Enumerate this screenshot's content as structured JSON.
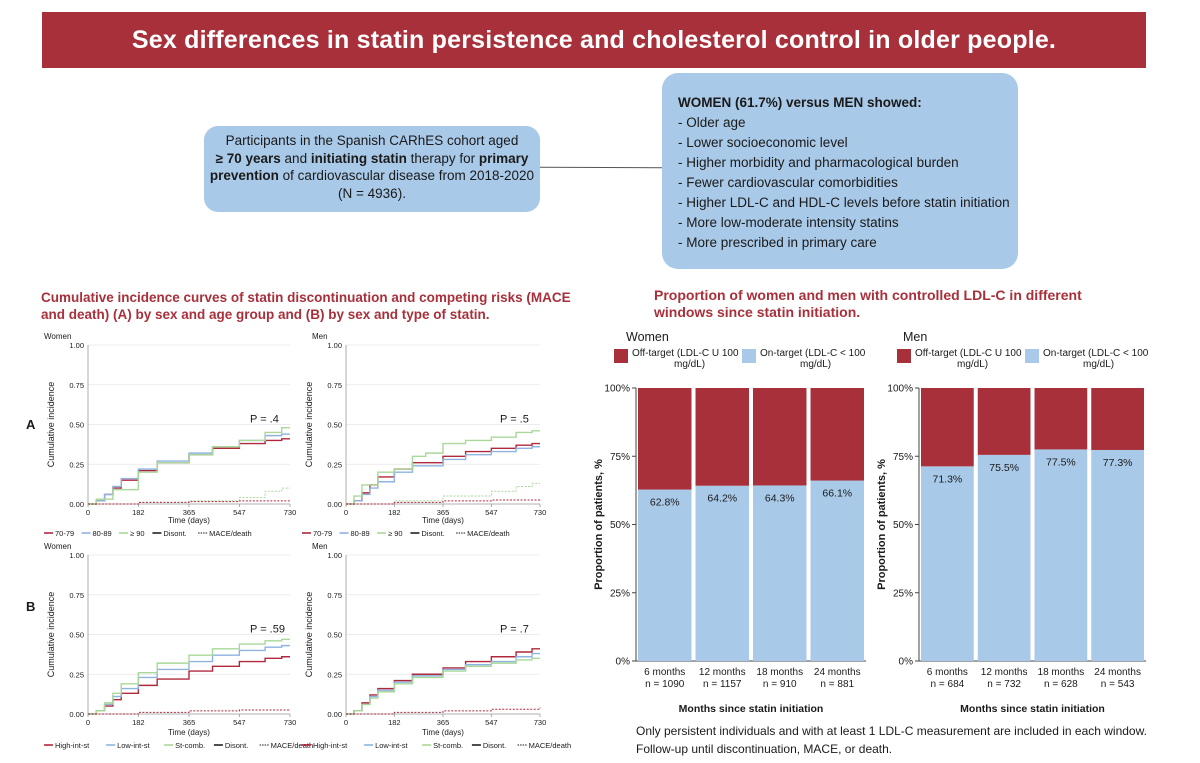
{
  "title": "Sex differences in statin persistence and cholesterol control in older people.",
  "participants": {
    "line1": "Participants in the Spanish CARhES cohort aged",
    "bold1": "≥ 70 years",
    "mid1": " and ",
    "bold2": "initiating statin",
    "mid2": " therapy for ",
    "bold3": "primary",
    "bold4": "prevention",
    "line3rest": " of cardiovascular disease from 2018-2020",
    "line4": "(N = 4936)."
  },
  "women_box": {
    "title": "WOMEN (61.7%) versus MEN showed:",
    "items": [
      "- Older age",
      "- Lower socioeconomic level",
      "- Higher morbidity and pharmacological burden",
      "- Fewer cardiovascular comorbidities",
      "- Higher LDL-C and HDL-C levels before statin initiation",
      "- More low-moderate intensity statins",
      "- More prescribed in primary care"
    ]
  },
  "left_title": "Cumulative incidence curves of statin discontinuation and competing risks (MACE and death) (A) by sex and age group and (B) by sex and type of statin.",
  "right_title": "Proportion of women and men with controlled LDL-C in different windows since statin initiation.",
  "footnote": {
    "line1": "Only persistent individuals and with at least 1 LDL-C measurement are included in each window.",
    "line2": "Follow-up until discontinuation, MACE, or death."
  },
  "colors": {
    "brand": "#a8303b",
    "box": "#a9c9e8",
    "red_curve": "#b0283c",
    "blue_curve": "#8fb3e0",
    "green_curve": "#a9d89a",
    "black_curve": "#222222",
    "off_target": "#a8303b",
    "on_target": "#a9c9e8"
  },
  "chart_data": [
    {
      "type": "line",
      "panel": "A",
      "title": "Women",
      "xlabel": "Time (days)",
      "ylabel": "Cumulative incidence",
      "xticks": [
        "0",
        "182",
        "365",
        "547",
        "730"
      ],
      "yticks": [
        "0.00",
        "0.25",
        "0.50",
        "0.75",
        "1.00"
      ],
      "xlim": [
        0,
        730
      ],
      "ylim": [
        0,
        1
      ],
      "pvalue": "P = .4",
      "legend": [
        "70-79",
        "80-89",
        "≥ 90",
        "Disont.",
        "MACE/death"
      ],
      "series": [
        {
          "name": "70-79",
          "color": "red",
          "x": [
            30,
            60,
            90,
            120,
            182,
            250,
            365,
            450,
            547,
            640,
            700
          ],
          "y": [
            0.02,
            0.06,
            0.1,
            0.15,
            0.21,
            0.26,
            0.31,
            0.35,
            0.38,
            0.4,
            0.41
          ]
        },
        {
          "name": "80-89",
          "color": "blue",
          "x": [
            30,
            60,
            90,
            120,
            182,
            250,
            365,
            450,
            547,
            640,
            700
          ],
          "y": [
            0.02,
            0.06,
            0.11,
            0.16,
            0.22,
            0.27,
            0.32,
            0.36,
            0.4,
            0.43,
            0.44
          ]
        },
        {
          "name": "≥ 90",
          "color": "green",
          "x": [
            30,
            90,
            182,
            250,
            365,
            450,
            547,
            640,
            700
          ],
          "y": [
            0.03,
            0.09,
            0.2,
            0.26,
            0.31,
            0.36,
            0.4,
            0.45,
            0.48
          ]
        },
        {
          "name": "≥ 90 MACE/death",
          "color": "green",
          "x": [
            0,
            182,
            365,
            547,
            640,
            700
          ],
          "y": [
            0.0,
            0.01,
            0.02,
            0.04,
            0.08,
            0.1
          ]
        },
        {
          "name": "MACE/death",
          "color": "red",
          "x": [
            0,
            182,
            365,
            547,
            730
          ],
          "y": [
            0.0,
            0.01,
            0.015,
            0.02,
            0.025
          ]
        }
      ]
    },
    {
      "type": "line",
      "panel": "A",
      "title": "Men",
      "xlabel": "Time (days)",
      "ylabel": "Cumulative incidence",
      "xticks": [
        "0",
        "182",
        "365",
        "547",
        "730"
      ],
      "yticks": [
        "0.00",
        "0.25",
        "0.50",
        "0.75",
        "1.00"
      ],
      "xlim": [
        0,
        730
      ],
      "ylim": [
        0,
        1
      ],
      "pvalue": "P = .5",
      "legend": [
        "70-79",
        "80-89",
        "≥ 90",
        "Disont.",
        "MACE/death"
      ],
      "series": [
        {
          "name": "70-79",
          "color": "red",
          "x": [
            30,
            60,
            90,
            120,
            182,
            250,
            365,
            450,
            547,
            640,
            700
          ],
          "y": [
            0.02,
            0.07,
            0.12,
            0.17,
            0.22,
            0.26,
            0.3,
            0.33,
            0.35,
            0.37,
            0.38
          ]
        },
        {
          "name": "80-89",
          "color": "blue",
          "x": [
            30,
            60,
            90,
            120,
            182,
            250,
            365,
            450,
            547,
            640,
            700
          ],
          "y": [
            0.02,
            0.06,
            0.1,
            0.14,
            0.2,
            0.24,
            0.28,
            0.31,
            0.33,
            0.35,
            0.36
          ]
        },
        {
          "name": "≥ 90",
          "color": "green",
          "x": [
            30,
            60,
            120,
            182,
            250,
            300,
            365,
            450,
            547,
            640,
            700
          ],
          "y": [
            0.05,
            0.12,
            0.2,
            0.22,
            0.3,
            0.32,
            0.38,
            0.4,
            0.42,
            0.45,
            0.46
          ]
        },
        {
          "name": "≥ 90 MACE/death",
          "color": "green",
          "x": [
            0,
            182,
            365,
            547,
            640,
            700
          ],
          "y": [
            0.0,
            0.02,
            0.05,
            0.08,
            0.11,
            0.13
          ]
        },
        {
          "name": "MACE/death",
          "color": "red",
          "x": [
            0,
            182,
            365,
            547,
            730
          ],
          "y": [
            0.0,
            0.01,
            0.02,
            0.025,
            0.03
          ]
        }
      ]
    },
    {
      "type": "line",
      "panel": "B",
      "title": "Women",
      "xlabel": "Time (days)",
      "ylabel": "Cumulative incidence",
      "xticks": [
        "0",
        "182",
        "365",
        "547",
        "730"
      ],
      "yticks": [
        "0.00",
        "0.25",
        "0.50",
        "0.75",
        "1.00"
      ],
      "xlim": [
        0,
        730
      ],
      "ylim": [
        0,
        1
      ],
      "pvalue": "P = .59",
      "legend": [
        "High-int-st",
        "Low-int-st",
        "St-comb.",
        "Disont.",
        "MACE/death"
      ],
      "series": [
        {
          "name": "High-int-st",
          "color": "red",
          "x": [
            30,
            60,
            90,
            120,
            182,
            250,
            365,
            450,
            547,
            640,
            700
          ],
          "y": [
            0.02,
            0.05,
            0.09,
            0.13,
            0.18,
            0.22,
            0.27,
            0.3,
            0.33,
            0.35,
            0.36
          ]
        },
        {
          "name": "Low-int-st",
          "color": "blue",
          "x": [
            30,
            60,
            90,
            120,
            182,
            250,
            365,
            450,
            547,
            640,
            700
          ],
          "y": [
            0.02,
            0.06,
            0.11,
            0.16,
            0.23,
            0.28,
            0.33,
            0.37,
            0.4,
            0.42,
            0.43
          ]
        },
        {
          "name": "St-comb.",
          "color": "green",
          "x": [
            30,
            60,
            90,
            120,
            182,
            250,
            365,
            450,
            547,
            640,
            700
          ],
          "y": [
            0.02,
            0.07,
            0.13,
            0.19,
            0.26,
            0.32,
            0.37,
            0.41,
            0.44,
            0.46,
            0.47
          ]
        },
        {
          "name": "MACE/death",
          "color": "red",
          "x": [
            0,
            182,
            365,
            547,
            730
          ],
          "y": [
            0.0,
            0.01,
            0.02,
            0.025,
            0.03
          ]
        }
      ]
    },
    {
      "type": "line",
      "panel": "B",
      "title": "Men",
      "xlabel": "Time (days)",
      "ylabel": "Cumulative incidence",
      "xticks": [
        "0",
        "182",
        "365",
        "547",
        "730"
      ],
      "yticks": [
        "0.00",
        "0.25",
        "0.50",
        "0.75",
        "1.00"
      ],
      "xlim": [
        0,
        730
      ],
      "ylim": [
        0,
        1
      ],
      "pvalue": "P = .7",
      "legend": [
        "High-int-st",
        "Low-int-st",
        "St-comb.",
        "Disont.",
        "MACE/death"
      ],
      "series": [
        {
          "name": "High-int-st",
          "color": "red",
          "x": [
            30,
            60,
            90,
            120,
            182,
            250,
            365,
            450,
            547,
            640,
            700
          ],
          "y": [
            0.02,
            0.07,
            0.12,
            0.16,
            0.21,
            0.25,
            0.29,
            0.33,
            0.36,
            0.39,
            0.41
          ]
        },
        {
          "name": "Low-int-st",
          "color": "blue",
          "x": [
            30,
            60,
            90,
            120,
            182,
            250,
            365,
            450,
            547,
            640,
            700
          ],
          "y": [
            0.02,
            0.06,
            0.11,
            0.15,
            0.2,
            0.24,
            0.28,
            0.31,
            0.33,
            0.36,
            0.38
          ]
        },
        {
          "name": "St-comb.",
          "color": "green",
          "x": [
            30,
            60,
            90,
            120,
            182,
            250,
            365,
            450,
            547,
            640,
            700
          ],
          "y": [
            0.02,
            0.06,
            0.1,
            0.14,
            0.19,
            0.23,
            0.27,
            0.3,
            0.32,
            0.34,
            0.35
          ]
        },
        {
          "name": "MACE/death",
          "color": "red",
          "x": [
            0,
            182,
            365,
            547,
            730
          ],
          "y": [
            0.0,
            0.01,
            0.02,
            0.03,
            0.04
          ]
        }
      ]
    },
    {
      "type": "bar",
      "stacked": true,
      "title": "Women",
      "xlabel": "Months since statin initiation",
      "ylabel": "Proportion of patients, %",
      "ylim": [
        0,
        100
      ],
      "yticks": [
        "0%",
        "25%",
        "50%",
        "75%",
        "100%"
      ],
      "categories": [
        "6 months",
        "12 months",
        "18 months",
        "24 months"
      ],
      "n_labels": [
        "n = 1090",
        "n = 1157",
        "n = 910",
        "n = 881"
      ],
      "legend": [
        "Off-target (LDL-C U 100 mg/dL)",
        "On-target (LDL-C < 100 mg/dL)"
      ],
      "series": [
        {
          "name": "On-target (LDL-C < 100 mg/dL)",
          "values": [
            62.8,
            64.2,
            64.3,
            66.1
          ],
          "labels": [
            "62.8%",
            "64.2%",
            "64.3%",
            "66.1%"
          ]
        },
        {
          "name": "Off-target (LDL-C U 100 mg/dL)",
          "values": [
            37.2,
            35.8,
            35.7,
            33.9
          ]
        }
      ]
    },
    {
      "type": "bar",
      "stacked": true,
      "title": "Men",
      "xlabel": "Months since statin initiation",
      "ylabel": "Proportion of patients, %",
      "ylim": [
        0,
        100
      ],
      "yticks": [
        "0%",
        "25%",
        "50%",
        "75%",
        "100%"
      ],
      "categories": [
        "6 months",
        "12 months",
        "18 months",
        "24 months"
      ],
      "n_labels": [
        "n = 684",
        "n = 732",
        "n = 628",
        "n = 543"
      ],
      "legend": [
        "Off-target (LDL-C U 100 mg/dL)",
        "On-target (LDL-C < 100 mg/dL)"
      ],
      "series": [
        {
          "name": "On-target (LDL-C < 100 mg/dL)",
          "values": [
            71.3,
            75.5,
            77.5,
            77.3
          ],
          "labels": [
            "71.3%",
            "75.5%",
            "77.5%",
            "77.3%"
          ]
        },
        {
          "name": "Off-target (LDL-C U 100 mg/dL)",
          "values": [
            28.7,
            24.5,
            22.5,
            22.7
          ]
        }
      ]
    }
  ]
}
